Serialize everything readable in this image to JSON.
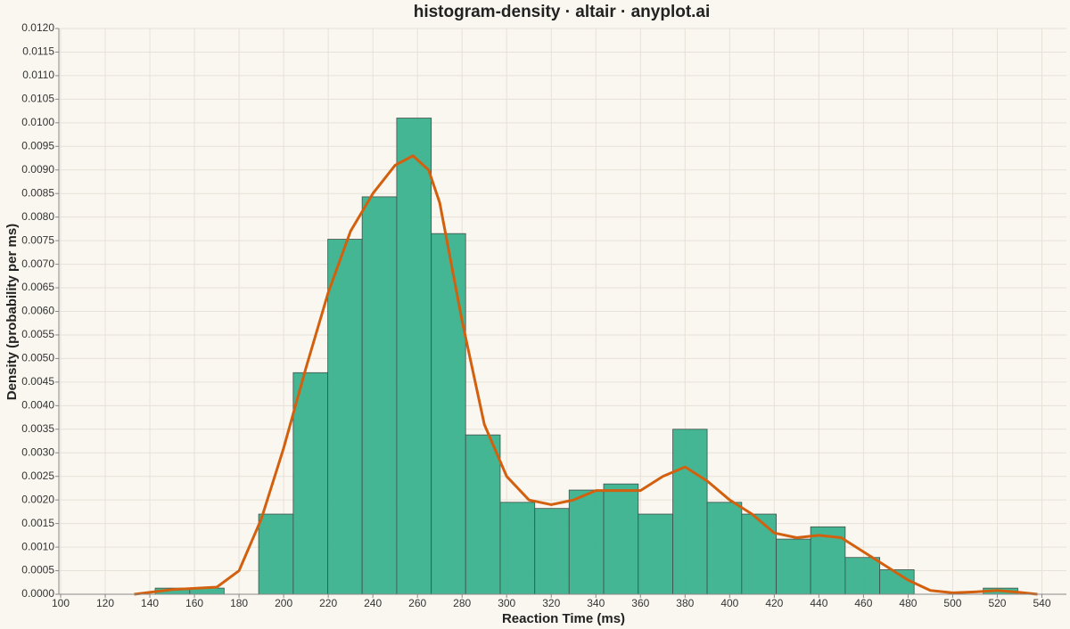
{
  "chart_data": {
    "type": "histogram",
    "title": "histogram-density · altair · anyplot.ai",
    "xlabel": "Reaction Time (ms)",
    "ylabel": "Density (probability per ms)",
    "bins": [
      142.4,
      157.9,
      173.3,
      188.8,
      204.3,
      219.8,
      235.2,
      250.7,
      266.2,
      281.6,
      297.1,
      312.6,
      328.0,
      343.5,
      359.0,
      374.5,
      389.9,
      405.4,
      420.9,
      436.3,
      451.8,
      467.3,
      482.7,
      498.2,
      513.7,
      529.2
    ],
    "values": [
      0.00013,
      0.00013,
      0,
      0.0017,
      0.0047,
      0.00753,
      0.00843,
      0.0101,
      0.00765,
      0.00338,
      0.00195,
      0.00182,
      0.00221,
      0.00234,
      0.0017,
      0.0035,
      0.00195,
      0.0017,
      0.00117,
      0.00143,
      0.00078,
      0.00052,
      0,
      0,
      0.00013
    ],
    "color": "#3bb28e",
    "density": {
      "color": "#d2600f",
      "x": [
        133,
        150,
        170,
        180,
        190,
        200,
        210,
        220,
        230,
        240,
        250,
        258,
        265,
        270,
        280,
        290,
        300,
        310,
        320,
        330,
        340,
        350,
        360,
        370,
        380,
        390,
        400,
        410,
        420,
        430,
        440,
        450,
        460,
        470,
        480,
        490,
        500,
        510,
        520,
        530,
        538
      ],
      "values": [
        0,
        0.0001,
        0.00015,
        0.0005,
        0.0016,
        0.0031,
        0.0048,
        0.0064,
        0.0077,
        0.0085,
        0.0091,
        0.0093,
        0.009,
        0.0083,
        0.0058,
        0.0036,
        0.0025,
        0.002,
        0.0019,
        0.002,
        0.0022,
        0.0022,
        0.0022,
        0.0025,
        0.0027,
        0.0024,
        0.002,
        0.0017,
        0.0013,
        0.0012,
        0.00125,
        0.0012,
        0.0009,
        0.0006,
        0.0003,
        8e-05,
        3e-05,
        5e-05,
        8e-05,
        4e-05,
        0
      ]
    },
    "xlim": [
      99.2,
      551
    ],
    "ylim": [
      0,
      0.012
    ],
    "xticks": [
      100,
      120,
      140,
      160,
      180,
      200,
      220,
      240,
      260,
      280,
      300,
      320,
      340,
      360,
      380,
      400,
      420,
      440,
      460,
      480,
      500,
      520,
      540
    ],
    "yticks": [
      {
        "value": 0,
        "label": "0.0000"
      },
      {
        "value": 0.0005,
        "label": "0.0005"
      },
      {
        "value": 0.001,
        "label": "0.0010"
      },
      {
        "value": 0.0015,
        "label": "0.0015"
      },
      {
        "value": 0.002,
        "label": "0.0020"
      },
      {
        "value": 0.0025,
        "label": "0.0025"
      },
      {
        "value": 0.003,
        "label": "0.0030"
      },
      {
        "value": 0.0035,
        "label": "0.0035"
      },
      {
        "value": 0.004,
        "label": "0.0040"
      },
      {
        "value": 0.0045,
        "label": "0.0045"
      },
      {
        "value": 0.005,
        "label": "0.0050"
      },
      {
        "value": 0.0055,
        "label": "0.0055"
      },
      {
        "value": 0.006,
        "label": "0.0060"
      },
      {
        "value": 0.0065,
        "label": "0.0065"
      },
      {
        "value": 0.007,
        "label": "0.0070"
      },
      {
        "value": 0.0075,
        "label": "0.0075"
      },
      {
        "value": 0.008,
        "label": "0.0080"
      },
      {
        "value": 0.0085,
        "label": "0.0085"
      },
      {
        "value": 0.009,
        "label": "0.0090"
      },
      {
        "value": 0.0095,
        "label": "0.0095"
      },
      {
        "value": 0.01,
        "label": "0.0100"
      },
      {
        "value": 0.0105,
        "label": "0.0105"
      },
      {
        "value": 0.011,
        "label": "0.0110"
      },
      {
        "value": 0.0115,
        "label": "0.0115"
      },
      {
        "value": 0.012,
        "label": "0.0120"
      }
    ],
    "grid": true
  }
}
